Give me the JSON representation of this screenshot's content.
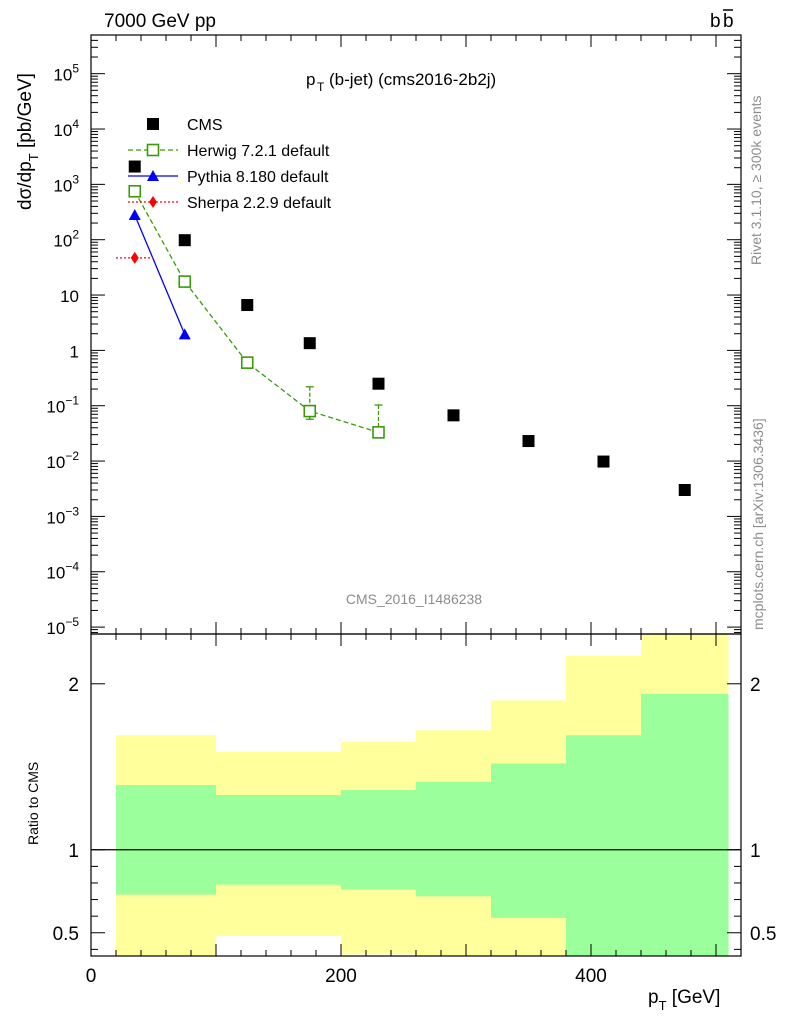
{
  "header": {
    "left": "7000 GeV pp",
    "right_main": "b",
    "right_bar": "b"
  },
  "plot_title": {
    "main": "p",
    "sub": "T",
    "rest": "(b-jet) (cms2016-2b2j)"
  },
  "side_labels": {
    "rivet": "Rivet 3.1.10, ≥ 300k events",
    "mcplots": "mcplots.cern.ch [arXiv:1306.3436]"
  },
  "watermark": "CMS_2016_I1486238",
  "axis_titles": {
    "main_y": {
      "a": "dσ/dp",
      "sub": "T",
      "b": " [pb/GeV]"
    },
    "ratio_y": "Ratio to CMS",
    "x": {
      "a": "p",
      "sub": "T",
      "b": " [GeV]"
    }
  },
  "chart_data": {
    "type": "scatter",
    "x_range": [
      0,
      520
    ],
    "y_log": true,
    "y_range": [
      7.5e-06,
      500000.0
    ],
    "ratio_range": [
      0.36,
      2.3
    ],
    "x_ticks": [
      {
        "v": 0,
        "label": "0"
      },
      {
        "v": 200,
        "label": "200"
      },
      {
        "v": 400,
        "label": "400"
      }
    ],
    "y_ticks": [
      {
        "exp": 5,
        "m": "10",
        "e": "5"
      },
      {
        "exp": 4,
        "m": "10",
        "e": "4"
      },
      {
        "exp": 3,
        "m": "10",
        "e": "3"
      },
      {
        "exp": 2,
        "m": "10",
        "e": "2"
      },
      {
        "exp": 1,
        "m": "10",
        "e": ""
      },
      {
        "exp": 0,
        "m": "1",
        "e": ""
      },
      {
        "exp": -1,
        "m": "10",
        "e": "−1"
      },
      {
        "exp": -2,
        "m": "10",
        "e": "−2"
      },
      {
        "exp": -3,
        "m": "10",
        "e": "−3"
      },
      {
        "exp": -4,
        "m": "10",
        "e": "−4"
      },
      {
        "exp": -5,
        "m": "10",
        "e": "−5"
      }
    ],
    "ratio_ticks": [
      {
        "v": 2,
        "label": "2"
      },
      {
        "v": 1,
        "label": "1"
      },
      {
        "v": 0.5,
        "label": "0.5"
      }
    ],
    "series": [
      {
        "name": "CMS",
        "marker": "square",
        "color": "#000000",
        "x": [
          35,
          75,
          125,
          175,
          230,
          290,
          350,
          410,
          475
        ],
        "y": [
          2100,
          98,
          6.6,
          1.35,
          0.25,
          0.067,
          0.023,
          0.0098,
          0.003
        ]
      },
      {
        "name": "Herwig 7.2.1 default",
        "marker": "open-square",
        "line": "dashed",
        "color": "#3a9a0a",
        "x": [
          35,
          75,
          125,
          175,
          230
        ],
        "y": [
          750,
          17.5,
          0.6,
          0.08,
          0.033
        ],
        "err_hi": [
          120,
          2.5,
          0.1,
          0.14,
          0.07
        ],
        "err_lo": [
          120,
          2.5,
          0.1,
          0.023,
          1e-07
        ]
      },
      {
        "name": "Pythia 8.180 default",
        "marker": "triangle",
        "line": "solid",
        "color": "#0000ff",
        "x": [
          35,
          75
        ],
        "y": [
          280,
          1.95
        ]
      },
      {
        "name": "Sherpa 2.2.9 default",
        "marker": "diamond",
        "line": "dotted",
        "color": "#ff0000",
        "x": [
          35
        ],
        "y": [
          47
        ],
        "x_err": [
          [
            20,
            50
          ]
        ]
      }
    ],
    "ratio_bands": [
      {
        "x0": 20,
        "x1": 100,
        "g_lo": 0.73,
        "g_hi": 1.39,
        "y_lo": 0.36,
        "y_hi": 1.69
      },
      {
        "x0": 100,
        "x1": 200,
        "g_lo": 0.79,
        "g_hi": 1.33,
        "y_lo": 0.48,
        "y_hi": 1.59
      },
      {
        "x0": 200,
        "x1": 260,
        "g_lo": 0.76,
        "g_hi": 1.36,
        "y_lo": 0.37,
        "y_hi": 1.65
      },
      {
        "x0": 260,
        "x1": 320,
        "g_lo": 0.72,
        "g_hi": 1.41,
        "y_lo": 0.36,
        "y_hi": 1.72
      },
      {
        "x0": 320,
        "x1": 380,
        "g_lo": 0.59,
        "g_hi": 1.52,
        "y_lo": 0.36,
        "y_hi": 1.9
      },
      {
        "x0": 380,
        "x1": 440,
        "g_lo": 0.36,
        "g_hi": 1.69,
        "y_lo": 0.36,
        "y_hi": 2.17
      },
      {
        "x0": 440,
        "x1": 510,
        "g_lo": 0.36,
        "g_hi": 1.94,
        "y_lo": 0.36,
        "y_hi": 2.3
      }
    ],
    "band_colors": {
      "inner": "#9bff9b",
      "outer": "#ffff9b"
    }
  }
}
